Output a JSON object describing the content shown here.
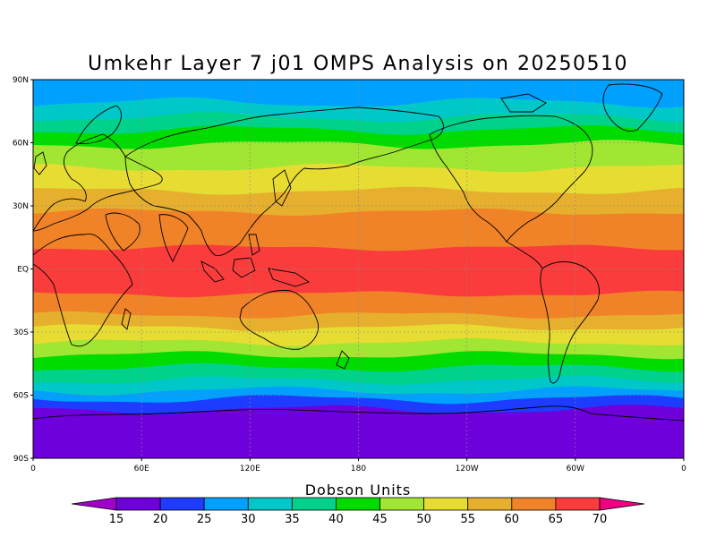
{
  "title": "Umkehr Layer 7 j01 OMPS Analysis on 20250510",
  "y_ticks": [
    "90N",
    "60N",
    "30N",
    "EQ",
    "30S",
    "60S",
    "90S"
  ],
  "x_ticks": [
    "0",
    "60E",
    "120E",
    "180",
    "120W",
    "60W",
    "0"
  ],
  "colorbar": {
    "title": "Dobson Units",
    "labels": [
      "15",
      "20",
      "25",
      "30",
      "35",
      "40",
      "45",
      "50",
      "55",
      "60",
      "65",
      "70"
    ],
    "colors": [
      "#a000c8",
      "#6e00dc",
      "#1e3cff",
      "#00a0ff",
      "#00c8c8",
      "#00d28c",
      "#00dc00",
      "#a0e632",
      "#e6dc32",
      "#e6af2d",
      "#f08228",
      "#fa3c3c",
      "#f00082"
    ]
  },
  "chart_data": {
    "type": "heatmap",
    "title": "Umkehr Layer 7 j01 OMPS Analysis on 20250510",
    "units": "Dobson Units",
    "projection": "equirectangular",
    "lon_range": [
      0,
      360
    ],
    "lat_range": [
      -90,
      90
    ],
    "grid": true,
    "bands": [
      {
        "lat_from": 90,
        "lat_to": 79,
        "color": "#00a0ff",
        "level": "25-30"
      },
      {
        "lat_from": 79,
        "lat_to": 72,
        "color": "#00c8c8",
        "level": "30-35"
      },
      {
        "lat_from": 72,
        "lat_to": 66,
        "color": "#00d28c",
        "level": "35-40"
      },
      {
        "lat_from": 66,
        "lat_to": 59,
        "color": "#00dc00",
        "level": "40-45"
      },
      {
        "lat_from": 59,
        "lat_to": 48,
        "color": "#a0e632",
        "level": "45-50"
      },
      {
        "lat_from": 48,
        "lat_to": 37,
        "color": "#e6dc32",
        "level": "50-55"
      },
      {
        "lat_from": 37,
        "lat_to": 27,
        "color": "#e6af2d",
        "level": "55-60"
      },
      {
        "lat_from": 27,
        "lat_to": 10,
        "color": "#f08228",
        "level": "60-65"
      },
      {
        "lat_from": 10,
        "lat_to": -12,
        "color": "#fa3c3c",
        "level": "65-70"
      },
      {
        "lat_from": -12,
        "lat_to": -22,
        "color": "#f08228",
        "level": "60-65"
      },
      {
        "lat_from": -22,
        "lat_to": -28,
        "color": "#e6af2d",
        "level": "55-60"
      },
      {
        "lat_from": -28,
        "lat_to": -35,
        "color": "#e6dc32",
        "level": "50-55"
      },
      {
        "lat_from": -35,
        "lat_to": -41,
        "color": "#a0e632",
        "level": "45-50"
      },
      {
        "lat_from": -41,
        "lat_to": -47,
        "color": "#00dc00",
        "level": "40-45"
      },
      {
        "lat_from": -47,
        "lat_to": -53,
        "color": "#00d28c",
        "level": "35-40"
      },
      {
        "lat_from": -53,
        "lat_to": -58,
        "color": "#00c8c8",
        "level": "30-35"
      },
      {
        "lat_from": -58,
        "lat_to": -62,
        "color": "#00a0ff",
        "level": "25-30"
      },
      {
        "lat_from": -62,
        "lat_to": -67,
        "color": "#1e3cff",
        "level": "20-25"
      },
      {
        "lat_from": -67,
        "lat_to": -90,
        "color": "#6e00dc",
        "level": "15-20"
      }
    ]
  }
}
